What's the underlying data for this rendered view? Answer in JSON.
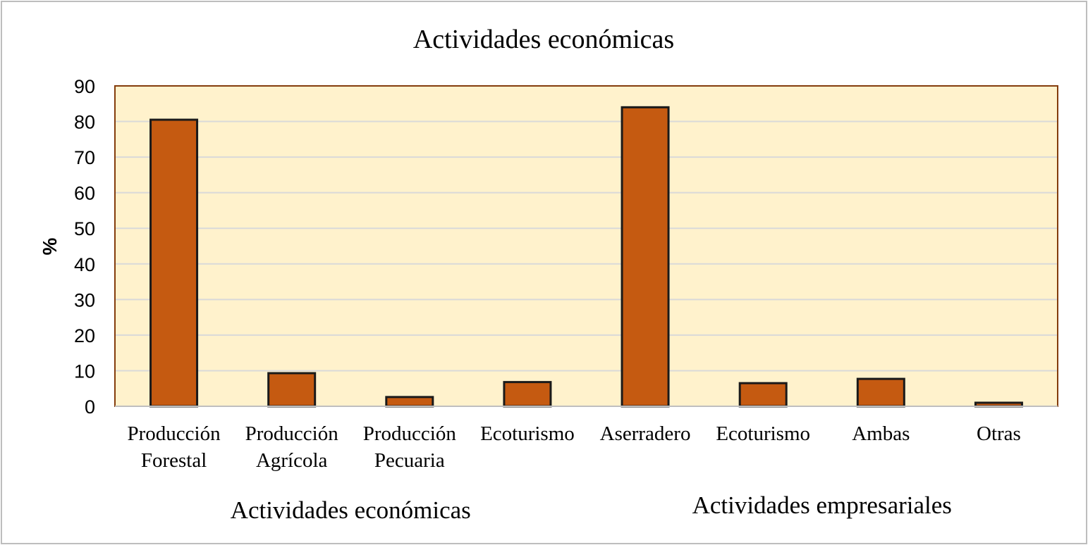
{
  "chart_data": {
    "type": "bar",
    "title": "Actividades económicas",
    "ylabel": "%",
    "ylim": [
      0,
      90
    ],
    "yticks": [
      0,
      10,
      20,
      30,
      40,
      50,
      60,
      70,
      80,
      90
    ],
    "grid": true,
    "legend": "none",
    "categories": [
      [
        "Producción",
        "Forestal"
      ],
      [
        "Producción",
        "Agrícola"
      ],
      [
        "Producción",
        "Pecuaria"
      ],
      [
        "Ecoturismo"
      ],
      [
        "Aserradero"
      ],
      [
        "Ecoturismo"
      ],
      [
        "Ambas"
      ],
      [
        "Otras"
      ]
    ],
    "values": [
      80.5,
      9.3,
      2.6,
      6.8,
      84.0,
      6.5,
      7.7,
      1.0
    ],
    "groups": [
      {
        "label": "Actividades económicas",
        "start": 0,
        "end": 3
      },
      {
        "label": "Actividades empresariales",
        "start": 4,
        "end": 7
      }
    ],
    "colors": {
      "bar_fill": "#c55a11",
      "bar_stroke": "#1a1a1a",
      "plot_background": "#fff2cc",
      "plot_border": "#843c0c",
      "gridline": "#d9d9d9"
    }
  }
}
